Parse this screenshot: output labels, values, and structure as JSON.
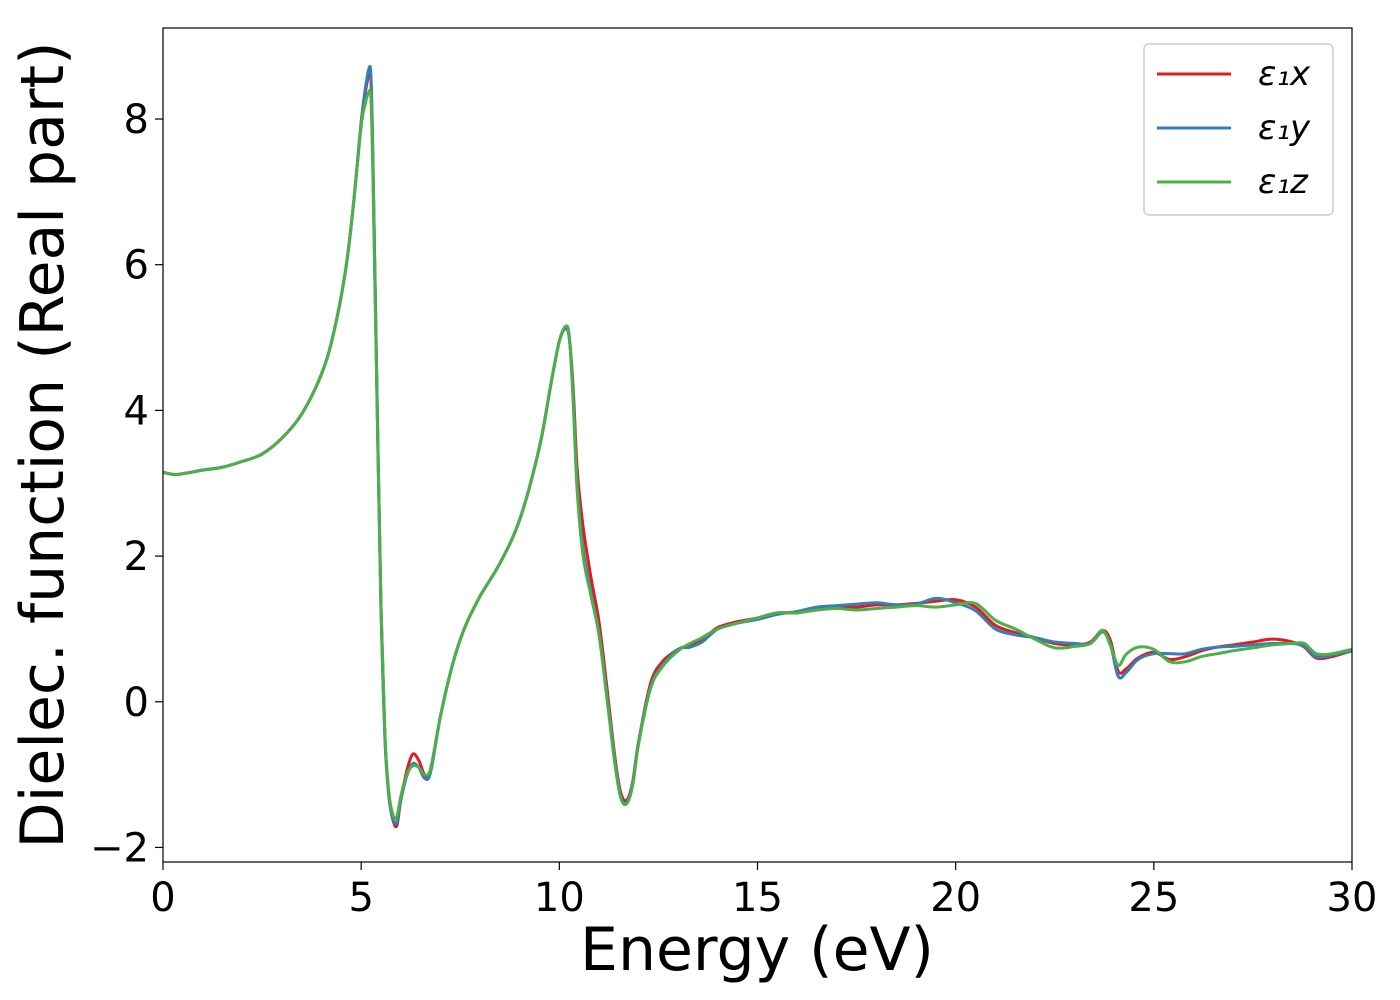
{
  "chart_data": {
    "type": "line",
    "title": "",
    "xlabel": "Energy (eV)",
    "ylabel": "Dielec. function (Real part)",
    "xlim": [
      0,
      30
    ],
    "ylim": [
      -2.2,
      9.25
    ],
    "grid": false,
    "legend_position": "top-right",
    "x_ticks": [
      0,
      5,
      10,
      15,
      20,
      25,
      30
    ],
    "x_tick_labels": [
      "0",
      "5",
      "10",
      "15",
      "20",
      "25",
      "30"
    ],
    "y_ticks": [
      -2,
      0,
      2,
      4,
      6,
      8
    ],
    "y_tick_labels": [
      "−2",
      "0",
      "2",
      "4",
      "6",
      "8"
    ],
    "x": [
      0,
      0.3,
      0.6,
      1.0,
      1.5,
      2.0,
      2.5,
      3.0,
      3.5,
      4.0,
      4.3,
      4.6,
      4.8,
      5.0,
      5.1,
      5.2,
      5.25,
      5.3,
      5.4,
      5.5,
      5.6,
      5.7,
      5.8,
      5.9,
      6.0,
      6.15,
      6.3,
      6.45,
      6.6,
      6.75,
      7.0,
      7.3,
      7.6,
      8.0,
      8.5,
      9.0,
      9.5,
      9.8,
      10.0,
      10.15,
      10.25,
      10.35,
      10.45,
      10.6,
      10.8,
      11.0,
      11.2,
      11.4,
      11.55,
      11.7,
      11.85,
      12.0,
      12.3,
      12.6,
      13.0,
      13.3,
      13.6,
      14.0,
      14.5,
      15.0,
      15.5,
      16.0,
      16.5,
      17.0,
      17.5,
      18.0,
      18.5,
      19.0,
      19.5,
      20.0,
      20.5,
      21.0,
      21.5,
      22.0,
      22.5,
      23.0,
      23.4,
      23.7,
      23.9,
      24.1,
      24.3,
      24.6,
      25.0,
      25.4,
      25.8,
      26.2,
      26.6,
      27.0,
      27.5,
      28.0,
      28.5,
      28.8,
      29.1,
      29.5,
      30.0
    ],
    "series": [
      {
        "name": "ε₁x",
        "color": "#e41a1c",
        "values": [
          3.15,
          3.12,
          3.14,
          3.18,
          3.22,
          3.3,
          3.4,
          3.62,
          3.95,
          4.5,
          5.05,
          5.9,
          6.8,
          7.95,
          8.35,
          8.62,
          8.5,
          7.3,
          4.2,
          1.3,
          -0.5,
          -1.3,
          -1.62,
          -1.7,
          -1.35,
          -0.95,
          -0.72,
          -0.8,
          -1.0,
          -0.95,
          -0.2,
          0.5,
          1.0,
          1.45,
          1.9,
          2.5,
          3.5,
          4.4,
          4.95,
          5.12,
          5.0,
          4.3,
          3.2,
          2.4,
          1.7,
          1.1,
          0.2,
          -0.75,
          -1.25,
          -1.35,
          -1.1,
          -0.55,
          0.25,
          0.55,
          0.72,
          0.78,
          0.85,
          1.02,
          1.1,
          1.15,
          1.22,
          1.22,
          1.28,
          1.3,
          1.3,
          1.33,
          1.33,
          1.35,
          1.38,
          1.4,
          1.3,
          1.05,
          0.95,
          0.88,
          0.8,
          0.78,
          0.82,
          0.98,
          0.85,
          0.42,
          0.45,
          0.6,
          0.68,
          0.58,
          0.62,
          0.7,
          0.75,
          0.78,
          0.82,
          0.86,
          0.82,
          0.75,
          0.6,
          0.62,
          0.7
        ]
      },
      {
        "name": "ε₁y",
        "color": "#377eb8",
        "values": [
          3.15,
          3.12,
          3.14,
          3.18,
          3.22,
          3.3,
          3.4,
          3.62,
          3.95,
          4.5,
          5.05,
          5.9,
          6.8,
          7.95,
          8.4,
          8.7,
          8.55,
          7.35,
          4.25,
          1.3,
          -0.5,
          -1.3,
          -1.6,
          -1.66,
          -1.35,
          -1.02,
          -0.85,
          -0.9,
          -1.05,
          -0.97,
          -0.2,
          0.5,
          1.0,
          1.45,
          1.9,
          2.5,
          3.5,
          4.4,
          4.95,
          5.12,
          5.0,
          4.2,
          3.0,
          2.1,
          1.5,
          0.95,
          0.1,
          -0.8,
          -1.3,
          -1.38,
          -1.12,
          -0.55,
          0.2,
          0.5,
          0.72,
          0.75,
          0.82,
          1.0,
          1.08,
          1.13,
          1.2,
          1.24,
          1.3,
          1.32,
          1.34,
          1.36,
          1.33,
          1.34,
          1.42,
          1.36,
          1.25,
          1.0,
          0.92,
          0.88,
          0.82,
          0.8,
          0.8,
          0.96,
          0.8,
          0.35,
          0.4,
          0.58,
          0.66,
          0.66,
          0.66,
          0.72,
          0.75,
          0.76,
          0.78,
          0.8,
          0.8,
          0.76,
          0.62,
          0.64,
          0.7
        ]
      },
      {
        "name": "ε₁z",
        "color": "#4daf4a",
        "values": [
          3.15,
          3.12,
          3.14,
          3.18,
          3.22,
          3.3,
          3.4,
          3.62,
          3.95,
          4.5,
          5.05,
          5.9,
          6.8,
          7.9,
          8.2,
          8.38,
          8.25,
          7.1,
          4.1,
          1.3,
          -0.45,
          -1.25,
          -1.55,
          -1.58,
          -1.3,
          -1.0,
          -0.88,
          -0.9,
          -1.0,
          -0.92,
          -0.2,
          0.5,
          1.0,
          1.45,
          1.9,
          2.5,
          3.5,
          4.4,
          4.95,
          5.15,
          5.02,
          4.1,
          2.9,
          2.0,
          1.45,
          0.92,
          0.05,
          -0.85,
          -1.32,
          -1.4,
          -1.15,
          -0.58,
          0.18,
          0.48,
          0.7,
          0.8,
          0.88,
          1.0,
          1.08,
          1.15,
          1.22,
          1.22,
          1.26,
          1.28,
          1.26,
          1.28,
          1.3,
          1.32,
          1.3,
          1.33,
          1.35,
          1.12,
          1.0,
          0.86,
          0.74,
          0.76,
          0.8,
          0.98,
          0.78,
          0.5,
          0.65,
          0.75,
          0.72,
          0.55,
          0.55,
          0.62,
          0.66,
          0.7,
          0.74,
          0.78,
          0.8,
          0.8,
          0.66,
          0.66,
          0.72
        ]
      }
    ]
  }
}
